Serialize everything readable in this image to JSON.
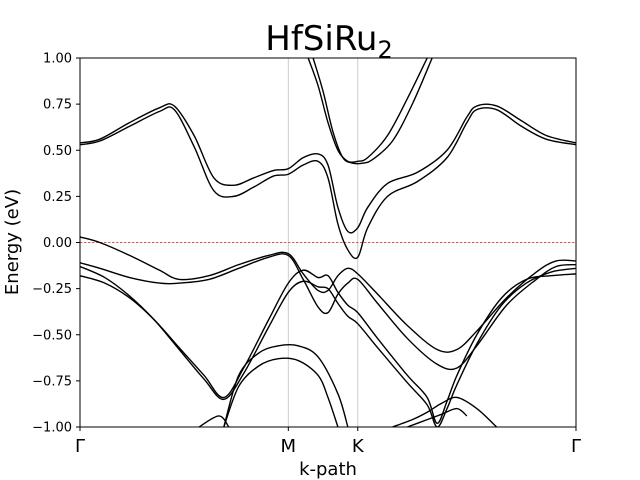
{
  "chart_data": {
    "type": "line",
    "title": "HfSiRu",
    "title_subscript": "2",
    "xlabel": "k-path",
    "ylabel": "Energy (eV)",
    "ylim": [
      -1.0,
      1.0
    ],
    "yticks": [
      -1.0,
      -0.75,
      -0.5,
      -0.25,
      0.0,
      0.25,
      0.5,
      0.75,
      1.0
    ],
    "ytick_labels": [
      "−1.00",
      "−0.75",
      "−0.50",
      "−0.25",
      "0.00",
      "0.25",
      "0.50",
      "0.75",
      "1.00"
    ],
    "xlim": [
      0,
      1
    ],
    "kpoints": [
      {
        "label": "Γ",
        "x": 0.0
      },
      {
        "label": "M",
        "x": 0.42
      },
      {
        "label": "K",
        "x": 0.56
      },
      {
        "label": "Γ",
        "x": 1.0
      }
    ],
    "fermi_level": 0.0,
    "fermi_color": "#d62728",
    "kpoint_line_color": "#cccccc",
    "band_color": "#000000",
    "grid": false,
    "legend": "none",
    "series": [
      {
        "x": [
          0,
          0.04,
          0.1,
          0.16,
          0.19,
          0.23,
          0.27,
          0.31,
          0.35,
          0.39,
          0.42,
          0.45,
          0.48,
          0.5,
          0.52,
          0.54,
          0.56,
          0.58,
          0.62,
          0.68,
          0.74,
          0.78,
          0.8,
          0.84,
          0.89,
          0.94,
          1.0
        ],
        "y": [
          0.54,
          0.56,
          0.65,
          0.73,
          0.74,
          0.58,
          0.35,
          0.31,
          0.35,
          0.39,
          0.4,
          0.46,
          0.48,
          0.42,
          0.19,
          0.06,
          0.08,
          0.19,
          0.32,
          0.38,
          0.5,
          0.68,
          0.74,
          0.74,
          0.66,
          0.58,
          0.54
        ]
      },
      {
        "x": [
          0,
          0.04,
          0.1,
          0.16,
          0.19,
          0.23,
          0.27,
          0.31,
          0.35,
          0.39,
          0.42,
          0.45,
          0.48,
          0.5,
          0.52,
          0.54,
          0.56,
          0.58,
          0.62,
          0.68,
          0.74,
          0.78,
          0.8,
          0.84,
          0.89,
          0.94,
          1.0
        ],
        "y": [
          0.53,
          0.55,
          0.63,
          0.71,
          0.72,
          0.52,
          0.28,
          0.25,
          0.3,
          0.36,
          0.37,
          0.42,
          0.44,
          0.35,
          0.1,
          -0.04,
          -0.08,
          0.08,
          0.25,
          0.33,
          0.46,
          0.65,
          0.72,
          0.72,
          0.63,
          0.56,
          0.53
        ]
      },
      {
        "x": [
          0.46,
          0.48,
          0.5,
          0.52,
          0.54,
          0.56,
          0.58,
          0.62,
          0.66,
          0.7
        ],
        "y": [
          1.0,
          0.85,
          0.65,
          0.5,
          0.44,
          0.44,
          0.46,
          0.58,
          0.78,
          1.0
        ]
      },
      {
        "x": [
          0.47,
          0.49,
          0.51,
          0.53,
          0.55,
          0.57,
          0.59,
          0.63,
          0.67,
          0.71
        ],
        "y": [
          1.0,
          0.82,
          0.6,
          0.46,
          0.43,
          0.43,
          0.45,
          0.55,
          0.75,
          1.0
        ]
      },
      {
        "x": [
          0,
          0.04,
          0.1,
          0.16,
          0.2,
          0.26,
          0.32,
          0.38,
          0.42,
          0.45,
          0.48,
          0.5,
          0.52,
          0.54,
          0.56,
          0.6,
          0.66,
          0.72,
          0.76,
          0.8,
          0.86,
          0.92,
          0.96,
          1.0
        ],
        "y": [
          0.03,
          0.0,
          -0.07,
          -0.15,
          -0.2,
          -0.18,
          -0.12,
          -0.07,
          -0.06,
          -0.17,
          -0.26,
          -0.26,
          -0.18,
          -0.14,
          -0.17,
          -0.28,
          -0.45,
          -0.58,
          -0.58,
          -0.48,
          -0.3,
          -0.16,
          -0.1,
          -0.1
        ]
      },
      {
        "x": [
          0,
          0.04,
          0.1,
          0.16,
          0.2,
          0.26,
          0.32,
          0.38,
          0.42,
          0.45,
          0.48,
          0.5,
          0.52,
          0.54,
          0.56,
          0.6,
          0.66,
          0.72,
          0.76,
          0.8,
          0.86,
          0.92,
          0.96,
          1.0
        ],
        "y": [
          -0.11,
          -0.14,
          -0.19,
          -0.22,
          -0.22,
          -0.2,
          -0.14,
          -0.08,
          -0.07,
          -0.2,
          -0.35,
          -0.38,
          -0.28,
          -0.22,
          -0.2,
          -0.33,
          -0.52,
          -0.66,
          -0.68,
          -0.56,
          -0.34,
          -0.2,
          -0.13,
          -0.12
        ]
      },
      {
        "x": [
          0,
          0.05,
          0.1,
          0.15,
          0.2,
          0.25,
          0.29,
          0.33,
          0.38,
          0.42,
          0.45,
          0.48,
          0.5,
          0.52,
          0.54,
          0.56,
          0.6,
          0.66,
          0.7,
          0.72,
          0.74,
          0.76,
          0.8,
          0.85,
          0.9,
          0.95,
          1.0
        ],
        "y": [
          -0.18,
          -0.22,
          -0.3,
          -0.42,
          -0.57,
          -0.72,
          -0.84,
          -0.68,
          -0.42,
          -0.22,
          -0.15,
          -0.19,
          -0.18,
          -0.27,
          -0.34,
          -0.38,
          -0.52,
          -0.72,
          -0.84,
          -0.98,
          -0.86,
          -0.72,
          -0.5,
          -0.3,
          -0.2,
          -0.18,
          -0.17
        ]
      },
      {
        "x": [
          0,
          0.05,
          0.1,
          0.15,
          0.2,
          0.25,
          0.29,
          0.33,
          0.38,
          0.42,
          0.45,
          0.48,
          0.5,
          0.52,
          0.54,
          0.56,
          0.6,
          0.66,
          0.7,
          0.72,
          0.74,
          0.76,
          0.8,
          0.85,
          0.9,
          0.95,
          1.0
        ],
        "y": [
          -0.13,
          -0.19,
          -0.29,
          -0.42,
          -0.58,
          -0.74,
          -0.85,
          -0.71,
          -0.46,
          -0.27,
          -0.21,
          -0.24,
          -0.25,
          -0.33,
          -0.4,
          -0.44,
          -0.57,
          -0.76,
          -0.88,
          -1.0,
          -0.9,
          -0.77,
          -0.55,
          -0.34,
          -0.22,
          -0.16,
          -0.14
        ]
      },
      {
        "x": [
          0.29,
          0.32,
          0.36,
          0.4,
          0.44,
          0.48,
          0.52,
          0.54
        ],
        "y": [
          -1.0,
          -0.72,
          -0.6,
          -0.56,
          -0.56,
          -0.62,
          -0.82,
          -1.0
        ]
      },
      {
        "x": [
          0.29,
          0.32,
          0.36,
          0.4,
          0.44,
          0.48,
          0.5,
          0.52
        ],
        "y": [
          -1.0,
          -0.78,
          -0.67,
          -0.63,
          -0.64,
          -0.72,
          -0.84,
          -1.0
        ]
      },
      {
        "x": [
          0.24,
          0.28,
          0.3
        ],
        "y": [
          -1.0,
          -0.94,
          -1.0
        ]
      },
      {
        "x": [
          0.63,
          0.67,
          0.7,
          0.73,
          0.76,
          0.8,
          0.84
        ],
        "y": [
          -1.0,
          -0.96,
          -0.92,
          -0.87,
          -0.84,
          -0.9,
          -1.0
        ]
      },
      {
        "x": [
          0.66,
          0.7,
          0.73,
          0.76,
          0.78
        ],
        "y": [
          -1.0,
          -0.96,
          -0.93,
          -0.9,
          -0.94
        ]
      }
    ]
  }
}
